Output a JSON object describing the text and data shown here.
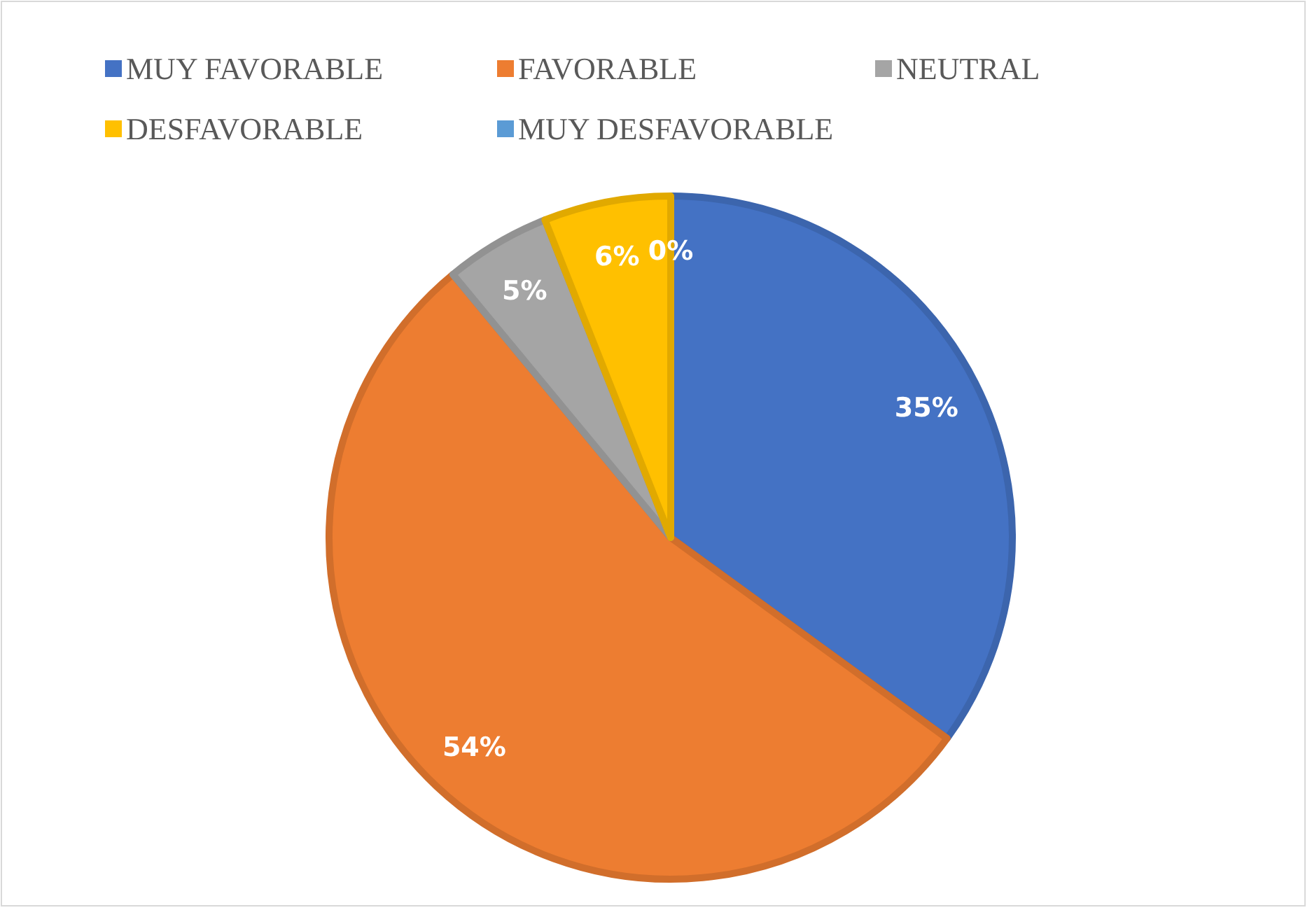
{
  "chart_data": {
    "type": "pie",
    "categories": [
      "MUY FAVORABLE",
      "FAVORABLE",
      "NEUTRAL",
      "DESFAVORABLE",
      "MUY DESFAVORABLE"
    ],
    "values": [
      35,
      54,
      5,
      6,
      0
    ],
    "colors": [
      "#4472c4",
      "#ed7d31",
      "#a5a5a5",
      "#ffc000",
      "#5b9bd5"
    ],
    "value_labels": [
      "35%",
      "54%",
      "5%",
      "6%",
      "0%"
    ],
    "legend": "top left"
  }
}
